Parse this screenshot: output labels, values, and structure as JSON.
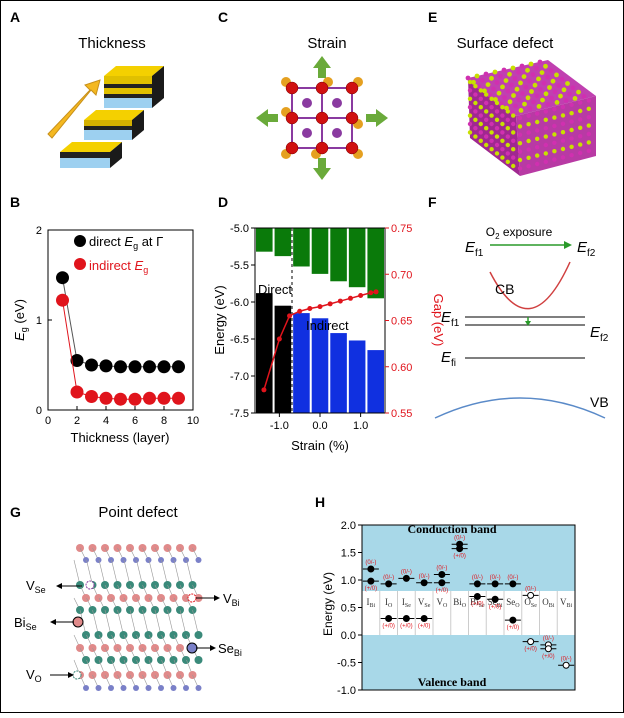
{
  "panels": {
    "A": {
      "letter": "A",
      "title": "Thickness"
    },
    "B": {
      "letter": "B",
      "xlabel": "Thickness (layer)",
      "ylabel": "E",
      "ylabel_sub": "g",
      "ylabel_unit": " (eV)",
      "legend_direct_pre": "direct ",
      "legend_direct_sym": "E",
      "legend_direct_sub": "g",
      "legend_direct_post": " at Γ",
      "legend_indirect_pre": "indirect ",
      "legend_indirect_sym": "E",
      "legend_indirect_sub": "g"
    },
    "C": {
      "letter": "C",
      "title": "Strain"
    },
    "D": {
      "letter": "D",
      "xlabel": "Strain (%)",
      "ylabel": "Energy (eV)",
      "y2label": "Gap (eV)",
      "label_direct": "Direct",
      "label_indirect": "Indirect"
    },
    "E": {
      "letter": "E",
      "title": "Surface defect"
    },
    "F": {
      "letter": "F",
      "ef1": "E",
      "ef1_sub": "f1",
      "ef2": "E",
      "ef2_sub": "f2",
      "o2_pre": "O",
      "o2_sub": "2",
      "o2_post": " exposure",
      "cb": "CB",
      "vb": "VB",
      "efi": "E",
      "efi_sub": "fi"
    },
    "G": {
      "letter": "G",
      "title": "Point defect",
      "vse": "V",
      "vse_sub": "Se",
      "vbi": "V",
      "vbi_sub": "Bi",
      "bise": "Bi",
      "bise_sub": "Se",
      "sebi": "Se",
      "sebi_sub": "Bi",
      "vo": "V",
      "vo_sub": "O"
    },
    "H": {
      "letter": "H",
      "ylabel": "Energy (eV)",
      "conduction": "Conduction band",
      "valence": "Valence band",
      "defects": [
        "I_Bi",
        "I_O",
        "I_Se",
        "V_Se",
        "V_O",
        "Bi_O",
        "Bi_Se",
        "Se_Bi",
        "Se_O",
        "O_Se",
        "O_Bi",
        "V_Bi"
      ],
      "level_labels": [
        "(0/-)",
        "(+/0)"
      ]
    }
  },
  "chart_data": [
    {
      "type": "scatter",
      "panel": "B",
      "xlabel": "Thickness (layer)",
      "ylabel": "Eg (eV)",
      "xlim": [
        0,
        10
      ],
      "ylim": [
        0,
        2
      ],
      "xticks": [
        "0",
        "2",
        "4",
        "6",
        "8",
        "10"
      ],
      "yticks": [
        "0",
        "1",
        "2"
      ],
      "series": [
        {
          "name": "direct Eg at Γ",
          "color": "#000000",
          "x": [
            1,
            2,
            3,
            4,
            5,
            6,
            7,
            8,
            9
          ],
          "y": [
            1.47,
            0.55,
            0.5,
            0.49,
            0.48,
            0.48,
            0.48,
            0.48,
            0.48
          ]
        },
        {
          "name": "indirect Eg",
          "color": "#e0141c",
          "x": [
            1,
            2,
            3,
            4,
            5,
            6,
            7,
            8,
            9
          ],
          "y": [
            1.22,
            0.2,
            0.15,
            0.13,
            0.12,
            0.12,
            0.13,
            0.13,
            0.13
          ]
        }
      ]
    },
    {
      "type": "bar",
      "panel": "D",
      "xlabel": "Strain (%)",
      "ylabel": "Energy (eV)",
      "y2label": "Gap (eV)",
      "x": [
        -1.5,
        -1.25,
        -1.0,
        -0.75,
        -0.5,
        -0.25,
        0.0,
        0.25,
        0.5,
        0.75,
        1.0,
        1.25,
        1.5
      ],
      "xticks": [
        "-1.0",
        "0.0",
        "1.0"
      ],
      "ylim": [
        -7.5,
        -5.0
      ],
      "yticks": [
        "-5.0",
        "-5.5",
        "-6.0",
        "-6.5",
        "-7.0",
        "-7.5"
      ],
      "y2lim": [
        0.55,
        0.75
      ],
      "y2ticks": [
        "0.55",
        "0.60",
        "0.65",
        "0.70",
        "0.75"
      ],
      "strain": [
        -1.25,
        -0.75,
        -0.25,
        0.25,
        0.75,
        1.25
      ],
      "cb_bottom": [
        -5.32,
        -5.38,
        -5.52,
        -5.62,
        -5.72,
        -5.8,
        -5.95
      ],
      "vb_top": [
        -5.88,
        -6.05,
        -6.15,
        -6.22,
        -6.42,
        -6.52,
        -6.65
      ],
      "gap_x": [
        -1.38,
        -1.0,
        -0.75,
        -0.5,
        -0.25,
        0.0,
        0.25,
        0.5,
        0.75,
        1.0,
        1.25,
        1.38
      ],
      "gap_y": [
        0.575,
        0.63,
        0.655,
        0.66,
        0.663,
        0.665,
        0.668,
        0.671,
        0.674,
        0.677,
        0.68,
        0.681
      ]
    },
    {
      "type": "scatter",
      "panel": "H",
      "ylabel": "Energy (eV)",
      "ylim": [
        -1.0,
        2.0
      ],
      "yticks": [
        "2.0",
        "1.5",
        "1.0",
        "0.5",
        "0.0",
        "-0.5",
        "-1.0"
      ],
      "categories": [
        "I_Bi",
        "I_O",
        "I_Se",
        "V_Se",
        "V_O",
        "Bi_O",
        "Bi_Se",
        "Se_Bi",
        "Se_O",
        "O_Se",
        "O_Bi",
        "V_Bi"
      ],
      "levels": [
        {
          "defect": "I_Bi",
          "value": 1.2,
          "type": "(0/-)"
        },
        {
          "defect": "I_Bi",
          "value": 0.98,
          "type": "(+/0)"
        },
        {
          "defect": "I_O",
          "value": 0.93,
          "type": "(0/-)"
        },
        {
          "defect": "I_O",
          "value": 0.3,
          "type": "(+/0)"
        },
        {
          "defect": "I_Se",
          "value": 1.03,
          "type": "(0/-)"
        },
        {
          "defect": "I_Se",
          "value": 0.3,
          "type": "(+/0)"
        },
        {
          "defect": "V_Se",
          "value": 0.95,
          "type": "(0/-)"
        },
        {
          "defect": "V_Se",
          "value": 0.3,
          "type": "(+/0)"
        },
        {
          "defect": "V_O",
          "value": 1.1,
          "type": "(0/-)"
        },
        {
          "defect": "V_O",
          "value": 0.95,
          "type": "(+/0)"
        },
        {
          "defect": "Bi_O",
          "value": 1.65,
          "type": "(0/-)"
        },
        {
          "defect": "Bi_O",
          "value": 1.57,
          "type": "(+/0)"
        },
        {
          "defect": "Bi_Se",
          "value": 0.93,
          "type": "(0/-)"
        },
        {
          "defect": "Bi_Se",
          "value": 0.7,
          "type": "(+/0)"
        },
        {
          "defect": "Se_Bi",
          "value": 0.93,
          "type": "(0/-)"
        },
        {
          "defect": "Se_Bi",
          "value": 0.65,
          "type": "(+/0)"
        },
        {
          "defect": "Se_O",
          "value": 0.93,
          "type": "(0/-)"
        },
        {
          "defect": "Se_O",
          "value": 0.27,
          "type": "(+/0)"
        },
        {
          "defect": "O_Se",
          "value": 0.72,
          "type": "(0/-)"
        },
        {
          "defect": "O_Se",
          "value": -0.12,
          "type": "(+/0)"
        },
        {
          "defect": "O_Bi",
          "value": -0.18,
          "type": "(0/-)"
        },
        {
          "defect": "O_Bi",
          "value": -0.25,
          "type": "(+/0)"
        },
        {
          "defect": "V_Bi",
          "value": -0.55,
          "type": "(0/-)"
        }
      ]
    }
  ],
  "colors": {
    "red": "#e0141c",
    "green": "#0a7a0a",
    "blue": "#1030e0",
    "gold": "#f5c518",
    "skyblue": "#bfe3f0",
    "band": "#a8d8e8",
    "arrow_green": "#6aaa3a",
    "purple": "#8a3aa0",
    "orange": "#e5a020",
    "magenta": "#d030b0"
  }
}
